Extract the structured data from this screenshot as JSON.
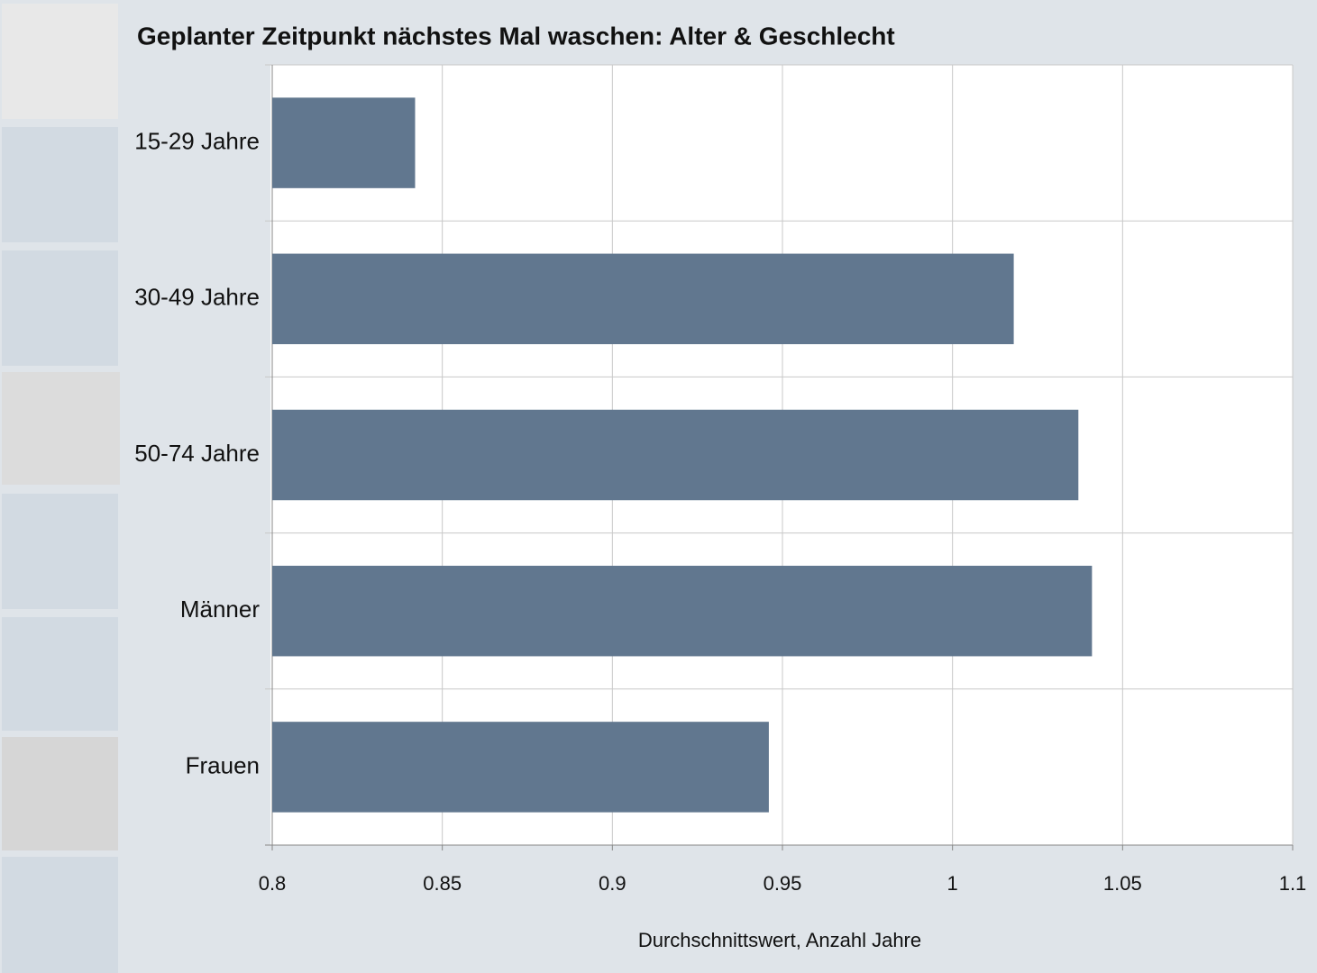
{
  "chart_data": {
    "type": "bar",
    "orientation": "horizontal",
    "title": "Geplanter Zeitpunkt nächstes Mal waschen: Alter & Geschlecht",
    "x_label": "Durchschnittswert, Anzahl Jahre",
    "categories": [
      "15-29 Jahre",
      "30-49 Jahre",
      "50-74 Jahre",
      "Männer",
      "Frauen"
    ],
    "values": [
      0.842,
      1.018,
      1.037,
      1.041,
      0.946
    ],
    "color": "#61778f",
    "xlim": [
      0.8,
      1.1
    ],
    "xticks": [
      0.8,
      0.85,
      0.9,
      0.95,
      1,
      1.05,
      1.1
    ],
    "grid": true
  }
}
